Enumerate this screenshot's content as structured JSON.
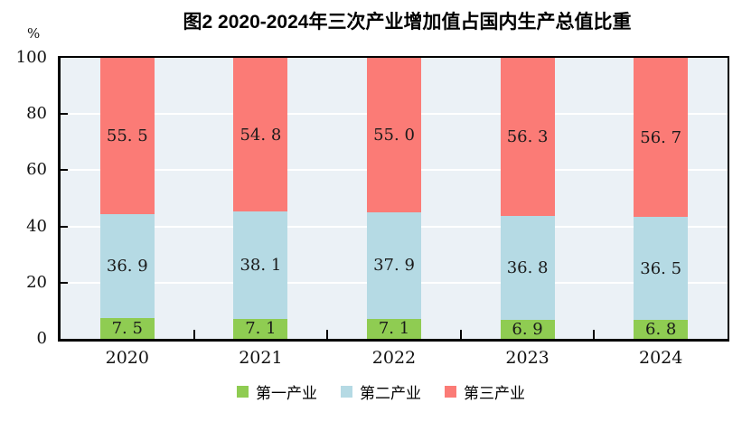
{
  "title": {
    "text": "图2  2020-2024年三次产业增加值占国内生产总值比重"
  },
  "y_axis": {
    "unit": "%",
    "tick_labels": [
      "0",
      "20",
      "40",
      "60",
      "80",
      "100"
    ]
  },
  "legend": {
    "items": [
      {
        "label": "第一产业",
        "color": "#8FCC52"
      },
      {
        "label": "第二产业",
        "color": "#B5DAE4"
      },
      {
        "label": "第三产业",
        "color": "#FB7B76"
      }
    ]
  },
  "colors": {
    "plot_background": "#EBF1F6",
    "gridline": "#FFFFFF",
    "axis": "#000000",
    "bar_primary": "#8FCC52",
    "bar_secondary": "#B5DAE4",
    "bar_tertiary": "#FB7B76",
    "label_text": "#1A1A1A"
  },
  "chart_data": {
    "type": "bar",
    "stacked": true,
    "title": "图2  2020-2024年三次产业增加值占国内生产总值比重",
    "categories": [
      "2020",
      "2021",
      "2022",
      "2023",
      "2024"
    ],
    "series": [
      {
        "name": "第一产业",
        "color": "#8FCC52",
        "values": [
          7.5,
          7.1,
          7.1,
          6.9,
          6.8
        ],
        "labels": [
          "7.5",
          "7.1",
          "7.1",
          "6.9",
          "6.8"
        ]
      },
      {
        "name": "第二产业",
        "color": "#B5DAE4",
        "values": [
          36.9,
          38.1,
          37.9,
          36.8,
          36.5
        ],
        "labels": [
          "36.9",
          "38.1",
          "37.9",
          "36.8",
          "36.5"
        ]
      },
      {
        "name": "第三产业",
        "color": "#FB7B76",
        "values": [
          55.5,
          54.8,
          55.0,
          56.3,
          56.7
        ],
        "labels": [
          "55.5",
          "54.8",
          "55.0",
          "56.3",
          "56.7"
        ]
      }
    ],
    "xlabel": "",
    "ylabel": "%",
    "ylim": [
      0,
      100
    ],
    "grid": true,
    "gridline_values": [
      20,
      40,
      60,
      80
    ],
    "legend_position": "bottom"
  }
}
